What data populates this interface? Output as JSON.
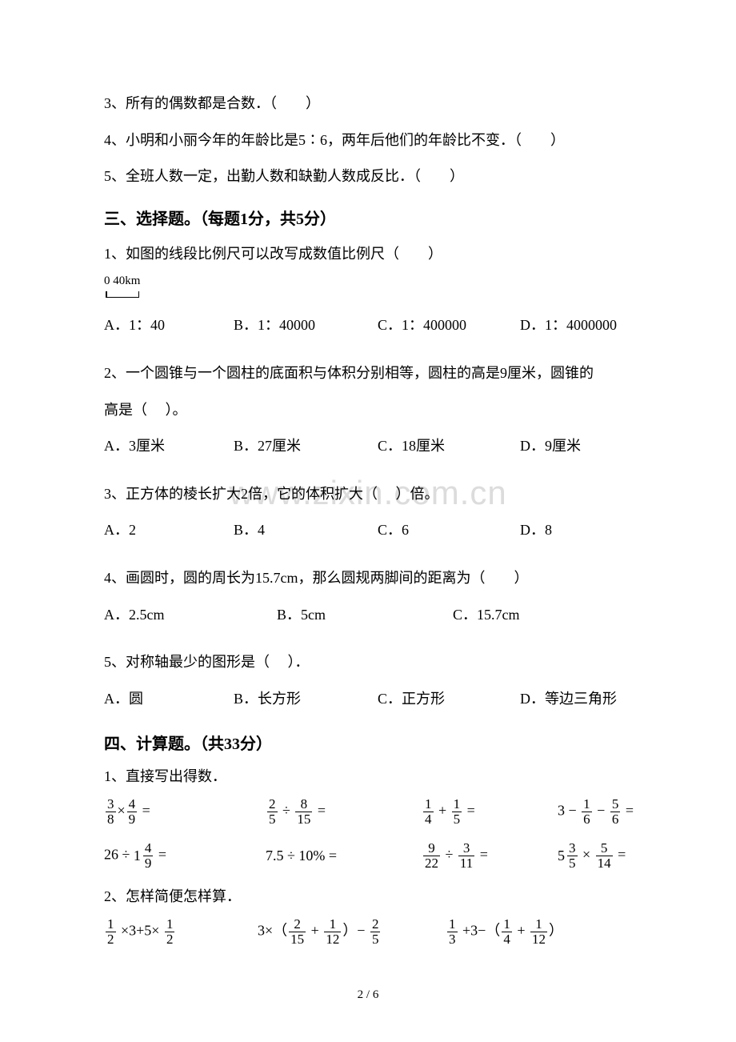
{
  "watermark": "www.zixin.com.cn",
  "section2": {
    "q3": "3、所有的偶数都是合数．（　　）",
    "q4": "4、小明和小丽今年的年龄比是5∶6，两年后他们的年龄比不变．（　　）",
    "q5": "5、全班人数一定，出勤人数和缺勤人数成反比．（　　）"
  },
  "section3": {
    "heading": "三、选择题。（每题1分，共5分）",
    "q1": {
      "stem": "1、如图的线段比例尺可以改写成数值比例尺（　　）",
      "scale_labels": "0  40km",
      "opts": {
        "a": "A．1：40",
        "b": "B．1：40000",
        "c": "C．1：400000",
        "d": "D．1：4000000"
      }
    },
    "q2": {
      "stem1": "2、一个圆锥与一个圆柱的底面积与体积分别相等，圆柱的高是9厘米，圆锥的",
      "stem2": "高是（　 ）。",
      "opts": {
        "a": "A．3厘米",
        "b": "B．27厘米",
        "c": "C．18厘米",
        "d": "D．9厘米"
      }
    },
    "q3": {
      "stem": "3、正方体的棱长扩大2倍，它的体积扩大（　 ）倍。",
      "opts": {
        "a": "A．2",
        "b": "B．4",
        "c": "C．6",
        "d": "D．8"
      }
    },
    "q4": {
      "stem": "4、画圆时，圆的周长为15.7cm，那么圆规两脚间的距离为（　　）",
      "opts": {
        "a": "A．2.5cm",
        "b": "B．5cm",
        "c": "C．15.7cm"
      }
    },
    "q5": {
      "stem": "5、对称轴最少的图形是（　 ）．",
      "opts": {
        "a": "A．圆",
        "b": "B．长方形",
        "c": "C．正方形",
        "d": "D．等边三角形"
      }
    }
  },
  "section4": {
    "heading": "四、计算题。（共33分）",
    "sub1": "1、直接写出得数．",
    "sub2": "2、怎样简便怎样算．"
  },
  "footer": "2 / 6"
}
